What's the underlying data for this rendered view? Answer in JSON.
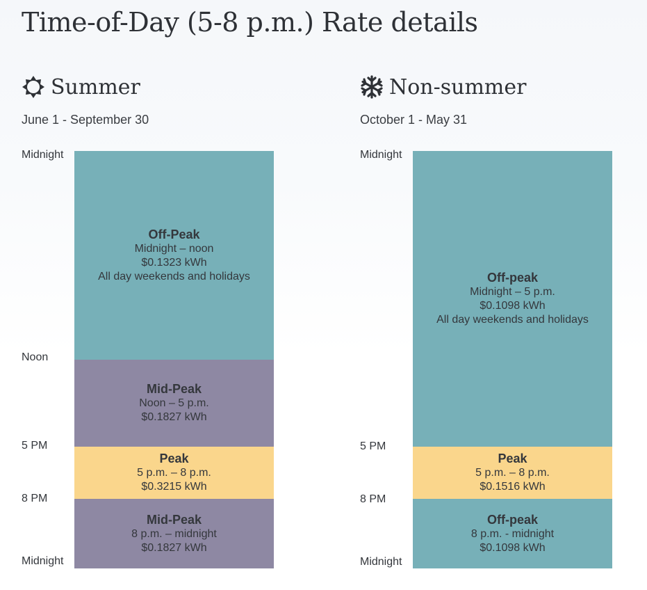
{
  "page": {
    "title": "Time-of-Day (5-8 p.m.) Rate details"
  },
  "colors": {
    "off_peak": "#77b0b8",
    "mid_peak": "#8e88a3",
    "peak": "#fad68c"
  },
  "summer": {
    "icon": "sun-icon",
    "name": "Summer",
    "dates": "June 1 - September 30",
    "time_labels": {
      "start": "Midnight",
      "noon": "Noon",
      "five": "5 PM",
      "eight": "8 PM",
      "end": "Midnight"
    },
    "blocks": [
      {
        "name": "Off-Peak",
        "time": "Midnight – noon",
        "rate": "$0.1323 kWh",
        "note": "All day weekends and holidays"
      },
      {
        "name": "Mid-Peak",
        "time": "Noon – 5 p.m.",
        "rate": "$0.1827 kWh"
      },
      {
        "name": "Peak",
        "time": "5 p.m. – 8 p.m.",
        "rate": "$0.3215 kWh"
      },
      {
        "name": "Mid-Peak",
        "time": "8 p.m. – midnight",
        "rate": "$0.1827 kWh"
      }
    ]
  },
  "non_summer": {
    "icon": "snowflake-icon",
    "name": "Non-summer",
    "dates": "October 1 - May 31",
    "time_labels": {
      "start": "Midnight",
      "five": "5 PM",
      "eight": "8 PM",
      "end": "Midnight"
    },
    "blocks": [
      {
        "name": "Off-peak",
        "time": "Midnight – 5 p.m.",
        "rate": "$0.1098 kWh",
        "note": "All day weekends and holidays"
      },
      {
        "name": "Peak",
        "time": "5 p.m. – 8 p.m.",
        "rate": "$0.1516 kWh"
      },
      {
        "name": "Off-peak",
        "time": "8 p.m. - midnight",
        "rate": "$0.1098 kWh"
      }
    ]
  }
}
